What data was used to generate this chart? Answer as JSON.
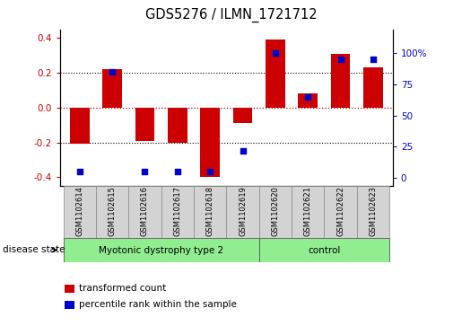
{
  "title": "GDS5276 / ILMN_1721712",
  "samples": [
    "GSM1102614",
    "GSM1102615",
    "GSM1102616",
    "GSM1102617",
    "GSM1102618",
    "GSM1102619",
    "GSM1102620",
    "GSM1102621",
    "GSM1102622",
    "GSM1102623"
  ],
  "bar_values": [
    -0.21,
    0.22,
    -0.19,
    -0.2,
    -0.4,
    -0.09,
    0.39,
    0.08,
    0.31,
    0.23
  ],
  "dot_values": [
    5,
    85,
    5,
    5,
    5,
    22,
    100,
    65,
    95,
    95
  ],
  "group1_count": 6,
  "group2_count": 4,
  "group1_label": "Myotonic dystrophy type 2",
  "group2_label": "control",
  "group_color": "#90EE90",
  "bar_color": "#CC0000",
  "dot_color": "#0000CC",
  "ylim_left": [
    -0.45,
    0.45
  ],
  "ylim_right": [
    -6.25,
    118.75
  ],
  "yticks_left": [
    -0.4,
    -0.2,
    0.0,
    0.2,
    0.4
  ],
  "yticks_right": [
    0,
    25,
    50,
    75,
    100
  ],
  "ytick_labels_right": [
    "0",
    "25",
    "50",
    "75",
    "100%"
  ],
  "disease_state_label": "disease state",
  "legend_bar_label": "transformed count",
  "legend_dot_label": "percentile rank within the sample",
  "sample_box_color": "#D3D3D3",
  "background_color": "#ffffff"
}
